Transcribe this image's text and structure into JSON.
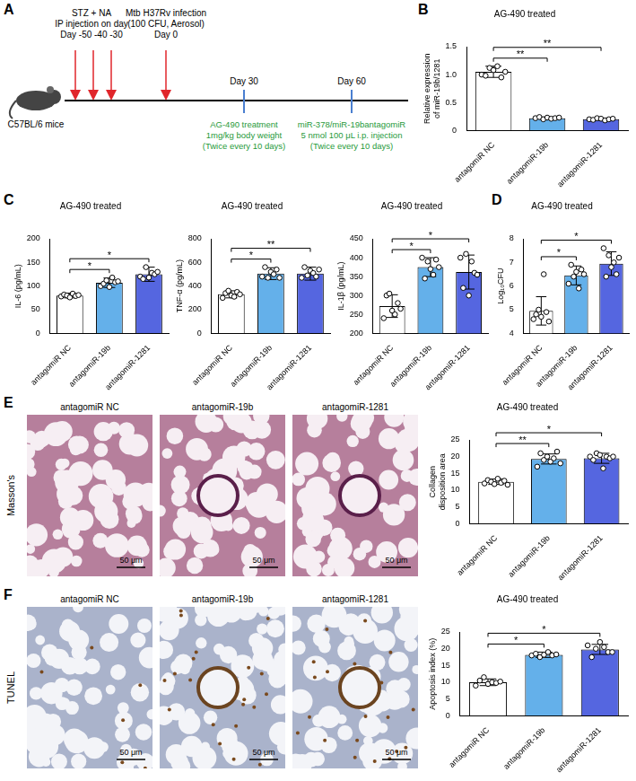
{
  "panel_labels": [
    "A",
    "B",
    "C",
    "D",
    "E",
    "F"
  ],
  "timeline": {
    "subject": "C57BL/6 mice",
    "induction": {
      "text": [
        "STZ + NA",
        "IP injection on day"
      ],
      "days": "Day -50 -40 -30"
    },
    "infection": {
      "text": [
        "Mtb H37Rv infection",
        "(100 CFU, Aerosol)"
      ],
      "day": "Day 0"
    },
    "treatments": [
      {
        "day": "Day 30",
        "text": [
          "AG-490 treatment",
          "1mg/kg body weight",
          "(Twice every 10 days)"
        ]
      },
      {
        "day": "Day 60",
        "text": [
          "miR-378/miR-19bantagomiR",
          "5 nmol 100 μL i.p. injection",
          "(Twice every 10 days)"
        ]
      }
    ]
  },
  "images": [
    {
      "stain": "Masson's",
      "titles": [
        "antagomiR NC",
        "antagomiR-19b",
        "antagomiR-1281"
      ],
      "scale": "50 μm"
    },
    {
      "stain": "TUNEL",
      "titles": [
        "antagomiR NC",
        "antagomiR-19b",
        "antagomiR-1281"
      ],
      "scale": "50 μm"
    }
  ],
  "chart_data": [
    {
      "type": "bar",
      "title": "AG-490 treated",
      "y_label": "Relative expression of miR-19b/1281",
      "categories": [
        "antagomiR NC",
        "antagomiR-19b",
        "antagomiR-1281"
      ],
      "values": [
        1.05,
        0.22,
        0.2
      ],
      "errors": [
        0.1,
        0.02,
        0.02
      ],
      "points": [
        [
          1.0,
          0.98,
          1.12,
          1.08,
          1.15,
          0.95,
          1.05
        ],
        [
          0.22,
          0.24,
          0.2,
          0.23,
          0.21,
          0.22,
          0.23
        ],
        [
          0.2,
          0.19,
          0.22,
          0.21,
          0.18,
          0.2,
          0.21
        ]
      ],
      "colors": [
        "#ffffff",
        "#64b0ea",
        "#5566e0"
      ],
      "ylim": [
        0,
        1.5
      ],
      "yticks": [
        0,
        0.5,
        {
          "value": 1,
          "label": "1.0"
        },
        1.5
      ],
      "grid": false,
      "significance": [
        {
          "from": 0,
          "to": 1,
          "label": "**"
        },
        {
          "from": 0,
          "to": 2,
          "label": "**"
        }
      ]
    },
    {
      "type": "bar",
      "title": "AG-490 treated",
      "y_label": "IL-6 (pg/mL)",
      "categories": [
        "antagomiR NC",
        "antagomiR-19b",
        "antagomiR-1281"
      ],
      "values": [
        80,
        107,
        125
      ],
      "errors": [
        5,
        10,
        15
      ],
      "points": [
        [
          78,
          82,
          80,
          76,
          84,
          79,
          81
        ],
        [
          100,
          105,
          112,
          98,
          118,
          108,
          110
        ],
        [
          120,
          115,
          140,
          118,
          128,
          125,
          130
        ]
      ],
      "colors": [
        "#ffffff",
        "#64b0ea",
        "#5566e0"
      ],
      "ylim": [
        0,
        200
      ],
      "yticks": [
        0,
        50,
        100,
        150,
        200
      ],
      "grid": false,
      "significance": [
        {
          "from": 0,
          "to": 1,
          "label": "*"
        },
        {
          "from": 0,
          "to": 2,
          "label": "*"
        }
      ]
    },
    {
      "type": "bar",
      "title": "AG-490 treated",
      "y_label": "TNF-α (pg/mL)",
      "categories": [
        "antagomiR NC",
        "antagomiR-19b",
        "antagomiR-1281"
      ],
      "values": [
        330,
        505,
        505
      ],
      "errors": [
        30,
        50,
        55
      ],
      "points": [
        [
          300,
          340,
          360,
          320,
          310,
          350,
          330
        ],
        [
          480,
          560,
          470,
          520,
          500,
          540,
          470
        ],
        [
          470,
          560,
          490,
          530,
          510,
          480,
          540
        ]
      ],
      "colors": [
        "#ffffff",
        "#64b0ea",
        "#5566e0"
      ],
      "ylim": [
        0,
        800
      ],
      "yticks": [
        0,
        200,
        400,
        600,
        800
      ],
      "grid": false,
      "significance": [
        {
          "from": 0,
          "to": 1,
          "label": "*"
        },
        {
          "from": 0,
          "to": 2,
          "label": "**"
        }
      ]
    },
    {
      "type": "bar",
      "title": "AG-490 treated",
      "y_label": "IL-1β (pg/mL)",
      "categories": [
        "antagomiR NC",
        "antagomiR-19b",
        "antagomiR-1281"
      ],
      "values": [
        272,
        375,
        362
      ],
      "errors": [
        30,
        25,
        45
      ],
      "points": [
        [
          240,
          300,
          305,
          260,
          250,
          280,
          265
        ],
        [
          400,
          345,
          390,
          370,
          355,
          395,
          375
        ],
        [
          400,
          320,
          410,
          300,
          390,
          360,
          355
        ]
      ],
      "colors": [
        "#ffffff",
        "#64b0ea",
        "#5566e0"
      ],
      "ylim": [
        200,
        450
      ],
      "yticks": [
        200,
        250,
        300,
        350,
        400,
        450
      ],
      "grid": false,
      "significance": [
        {
          "from": 0,
          "to": 1,
          "label": "*"
        },
        {
          "from": 0,
          "to": 2,
          "label": "*"
        }
      ]
    },
    {
      "type": "bar",
      "title": "AG-490 treated",
      "y_label": "Log₁₀CFU",
      "categories": [
        "antagomiR NC",
        "antagomiR-19b",
        "antagomiR-1281"
      ],
      "values": [
        4.95,
        6.45,
        6.95
      ],
      "errors": [
        0.6,
        0.4,
        0.5
      ],
      "points": [
        [
          4.6,
          4.8,
          5.0,
          4.7,
          6.5,
          4.9,
          4.5
        ],
        [
          6.1,
          6.9,
          6.4,
          6.6,
          5.9,
          6.7,
          6.5
        ],
        [
          7.6,
          6.4,
          7.3,
          6.8,
          7.0,
          6.5,
          7.2
        ]
      ],
      "colors": [
        "#ffffff",
        "#64b0ea",
        "#5566e0"
      ],
      "ylim": [
        4,
        8
      ],
      "yticks": [
        4,
        5,
        6,
        7,
        8
      ],
      "grid": false,
      "significance": [
        {
          "from": 0,
          "to": 1,
          "label": "*"
        },
        {
          "from": 0,
          "to": 2,
          "label": "*"
        }
      ]
    },
    {
      "type": "bar",
      "title": "AG-490 treated",
      "y_label": "Collagen disposition area",
      "categories": [
        "antagomiR NC",
        "antagomiR-19b",
        "antagomiR-1281"
      ],
      "values": [
        12.5,
        19.3,
        19.5
      ],
      "errors": [
        0.8,
        1.5,
        1.5
      ],
      "points": [
        [
          12,
          13,
          12.5,
          11.8,
          13.4,
          12.2,
          12.8,
          11.6
        ],
        [
          17,
          21,
          19,
          20,
          18.5,
          19.5,
          21.5,
          18
        ],
        [
          20,
          19,
          21,
          20.5,
          16.5,
          20,
          19.5,
          20
        ]
      ],
      "colors": [
        "#ffffff",
        "#64b0ea",
        "#5566e0"
      ],
      "ylim": [
        0,
        25
      ],
      "yticks": [
        0,
        5,
        10,
        15,
        20,
        25
      ],
      "grid": false,
      "significance": [
        {
          "from": 0,
          "to": 1,
          "label": "**"
        },
        {
          "from": 0,
          "to": 2,
          "label": "*"
        }
      ]
    },
    {
      "type": "bar",
      "title": "AG-490 treated",
      "y_label": "Apoptosis index (%)",
      "categories": [
        "antagomiR NC",
        "antagomiR-19b",
        "antagomiR-1281"
      ],
      "values": [
        10,
        18.2,
        19.8
      ],
      "errors": [
        1,
        0.8,
        1.5
      ],
      "points": [
        [
          9,
          10.5,
          11.5,
          9.5,
          10,
          9.8,
          10.2
        ],
        [
          18,
          18.5,
          17.5,
          18.2,
          19,
          18,
          18.3
        ],
        [
          21,
          17.5,
          20,
          22,
          20.5,
          19,
          19
        ]
      ],
      "colors": [
        "#ffffff",
        "#64b0ea",
        "#5566e0"
      ],
      "ylim": [
        0,
        25
      ],
      "yticks": [
        0,
        5,
        10,
        15,
        20,
        25
      ],
      "grid": false,
      "significance": [
        {
          "from": 0,
          "to": 1,
          "label": "*"
        },
        {
          "from": 0,
          "to": 2,
          "label": "*"
        }
      ]
    }
  ]
}
